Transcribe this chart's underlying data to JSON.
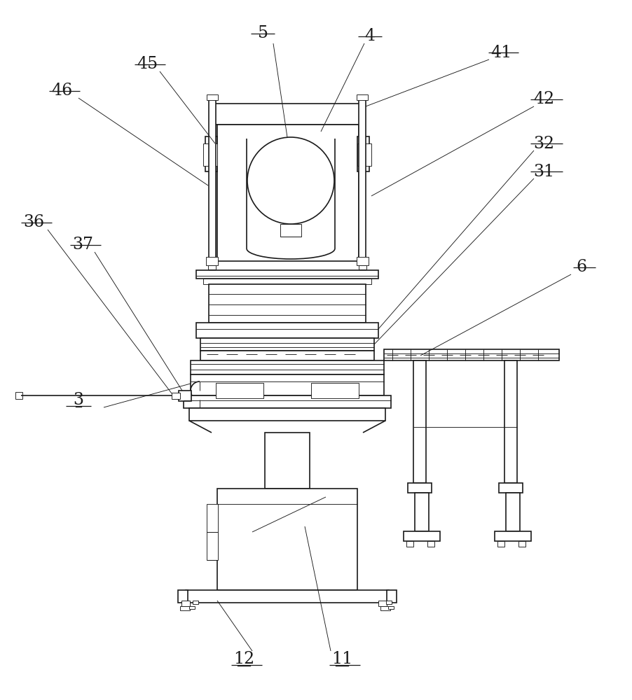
{
  "bg_color": "#ffffff",
  "lc": "#1a1a1a",
  "lw": 1.2,
  "tw": 0.65,
  "fs": 17,
  "figsize": [
    9.02,
    10.0
  ],
  "dpi": 100
}
